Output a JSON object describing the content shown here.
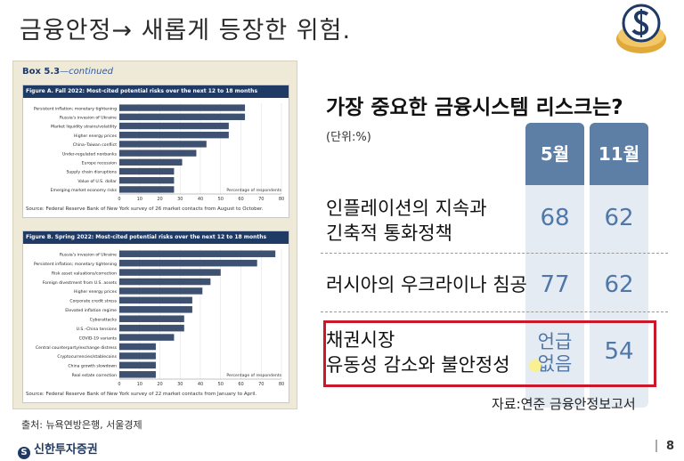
{
  "slide": {
    "title": "금융안정→ 새롭게 등장한 위험.",
    "footer_source": "출처: 뉴욕연방은행, 서울경제",
    "brand": "신한투자증권",
    "page_number": "8"
  },
  "box": {
    "title": "Box 5.3",
    "continued": "—continued"
  },
  "risk_table": {
    "title": "가장 중요한 금융시스템 리스크는?",
    "unit": "(단위:%)",
    "columns": [
      "5월",
      "11월"
    ],
    "rows": [
      {
        "label_line1": "인플레이션의 지속과",
        "label_line2": "긴축적 통화정책",
        "may": "68",
        "nov": "62"
      },
      {
        "label_line1": "러시아의 우크라이나 침공",
        "label_line2": "",
        "may": "77",
        "nov": "62"
      },
      {
        "label_line1": "채권시장",
        "label_line2": "유동성 감소와 불안정성",
        "may_line1": "언급",
        "may_line2": "없음",
        "nov": "54"
      }
    ],
    "source": "자료:연준 금융안정보고서",
    "accent_color": "#5d7fa6",
    "highlight_color": "#c8182a"
  },
  "chart_data": [
    {
      "type": "bar",
      "orientation": "horizontal",
      "title": "Figure A. Fall 2022: Most-cited potential risks over the next 12 to 18 months",
      "categories": [
        "Persistent inflation; monetary tightening",
        "Russia's invasion of Ukraine",
        "Market liquidity strains/volatility",
        "Higher energy prices",
        "China–Taiwan conflict",
        "Under-regulated nonbanks",
        "Europe recession",
        "Supply chain disruptions",
        "Value of U.S. dollar",
        "Emerging market economy risks"
      ],
      "values": [
        62,
        62,
        54,
        54,
        43,
        38,
        31,
        27,
        27,
        27
      ],
      "xlabel": "Percentage of respondents",
      "xticks": [
        0,
        10,
        20,
        30,
        40,
        50,
        60,
        70,
        80
      ],
      "xlim": [
        0,
        80
      ],
      "source": "Source: Federal Reserve Bank of New York survey of 26 market contacts from August to October.",
      "bar_color": "#3e5170"
    },
    {
      "type": "bar",
      "orientation": "horizontal",
      "title": "Figure B. Spring 2022: Most-cited potential risks over the next 12 to 18 months",
      "categories": [
        "Russia's invasion of Ukraine",
        "Persistent inflation; monetary tightening",
        "Risk asset valuations/correction",
        "Foreign divestment from U.S. assets",
        "Higher energy prices",
        "Corporate credit stress",
        "Elevated inflation regime",
        "Cyberattacks",
        "U.S.–China tensions",
        "COVID-19 variants",
        "Central counterparty/exchange distress",
        "Cryptocurrencies/stablecoins",
        "China growth slowdown",
        "Real estate correction"
      ],
      "values": [
        77,
        68,
        50,
        45,
        41,
        36,
        36,
        32,
        32,
        27,
        18,
        18,
        18,
        18
      ],
      "xlabel": "Percentage of respondents",
      "xticks": [
        0,
        10,
        20,
        30,
        40,
        50,
        60,
        70,
        80
      ],
      "xlim": [
        0,
        80
      ],
      "source": "Source: Federal Reserve Bank of New York survey of 22 market contacts from January to April.",
      "bar_color": "#3e5170"
    }
  ]
}
